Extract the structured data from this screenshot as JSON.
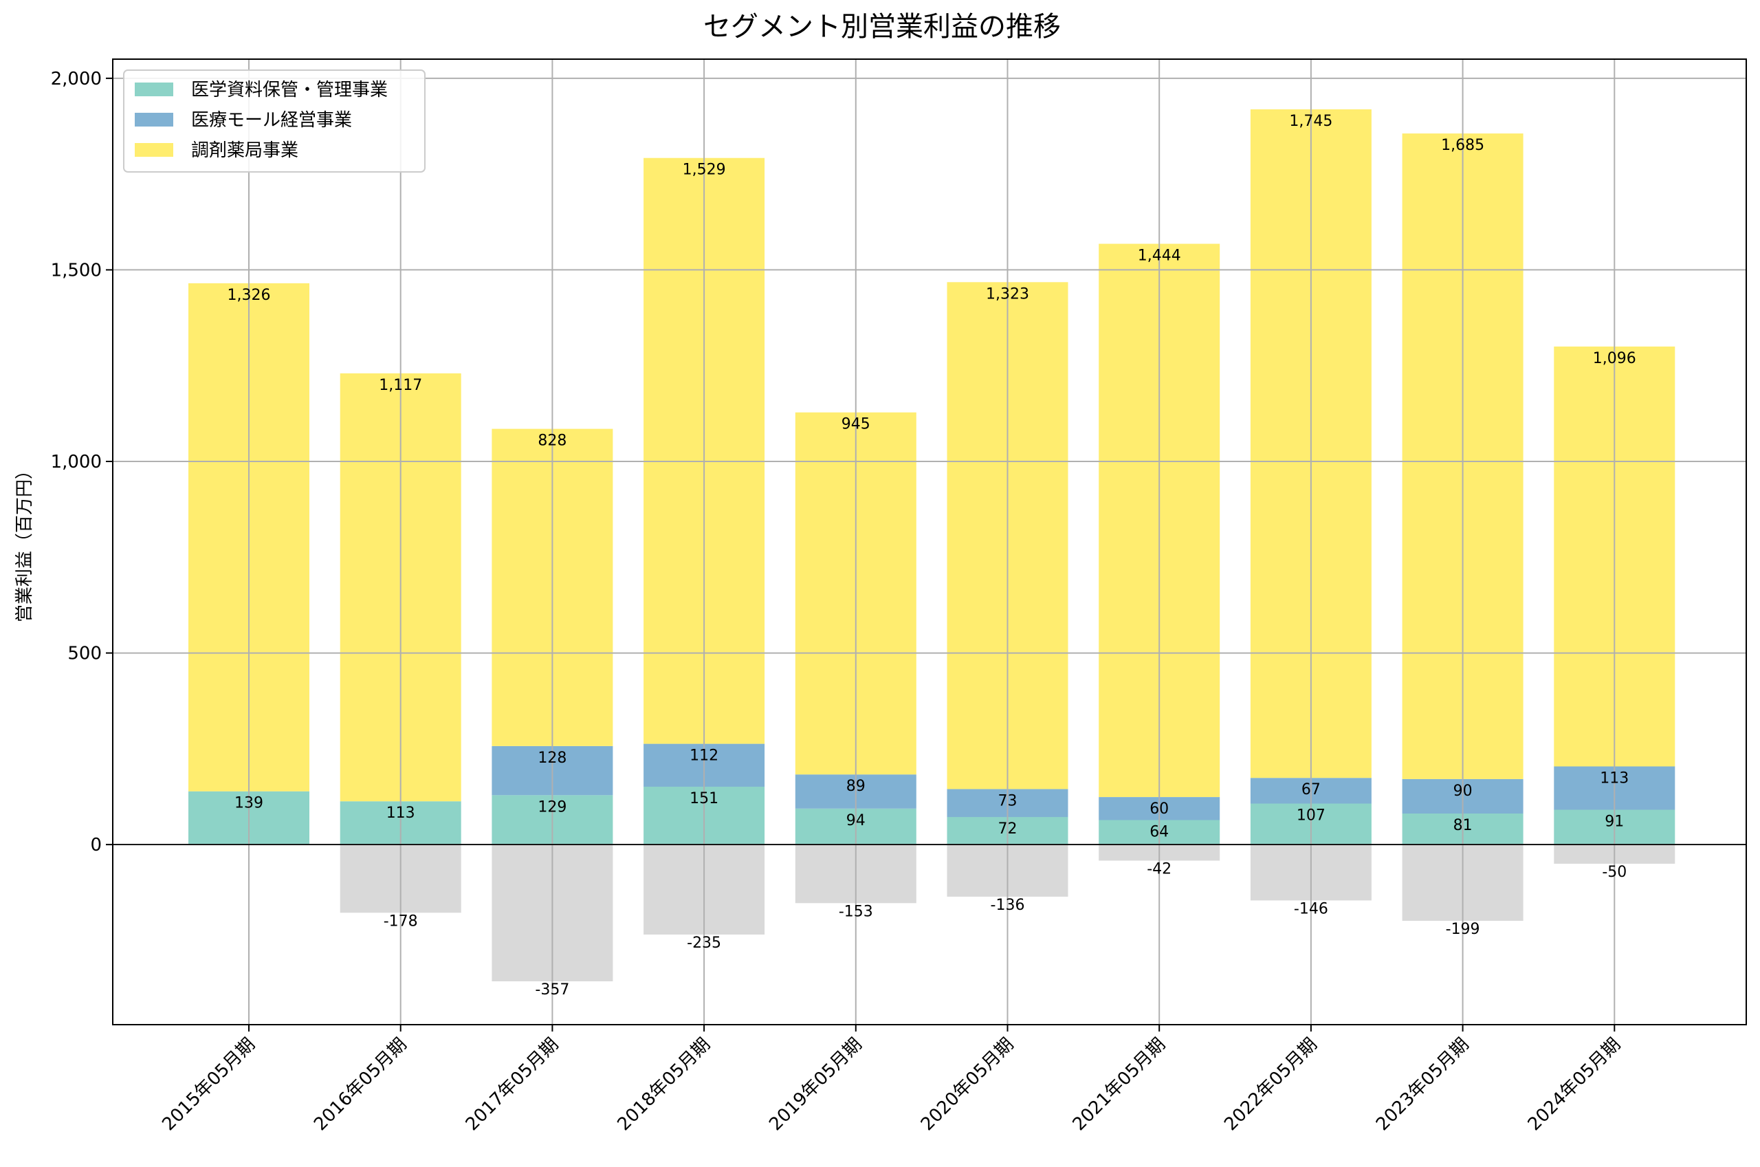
{
  "chart_data": {
    "type": "bar",
    "stacked": true,
    "title": "セグメント別営業利益の推移",
    "xlabel": "",
    "ylabel": "営業利益（百万円）",
    "ylim": [
      -470,
      2050
    ],
    "yticks": [
      0,
      500,
      1000,
      1500,
      2000
    ],
    "ytick_labels": [
      "0",
      "500",
      "1,000",
      "1,500",
      "2,000"
    ],
    "grid": true,
    "legend_position": "top-left",
    "categories": [
      "2015年05月期",
      "2016年05月期",
      "2017年05月期",
      "2018年05月期",
      "2019年05月期",
      "2020年05月期",
      "2021年05月期",
      "2022年05月期",
      "2023年05月期",
      "2024年05月期"
    ],
    "series": [
      {
        "name": "医学資料保管・管理事業",
        "color": "#8dd3c7",
        "values": [
          139,
          113,
          129,
          151,
          94,
          72,
          64,
          107,
          81,
          91
        ],
        "labels": [
          "139",
          "113",
          "129",
          "151",
          "94",
          "72",
          "64",
          "107",
          "81",
          "91"
        ]
      },
      {
        "name": "医療モール経営事業",
        "color": "#80b1d3",
        "values": [
          null,
          null,
          128,
          112,
          89,
          73,
          60,
          67,
          90,
          113
        ],
        "labels": [
          "",
          "",
          "128",
          "112",
          "89",
          "73",
          "60",
          "67",
          "90",
          "113"
        ]
      },
      {
        "name": "調剤薬局事業",
        "color": "#ffed6f",
        "values": [
          1326,
          1117,
          828,
          1529,
          945,
          1323,
          1444,
          1745,
          1685,
          1096
        ],
        "labels": [
          "1,326",
          "1,117",
          "828",
          "1,529",
          "945",
          "1,323",
          "1,444",
          "1,745",
          "1,685",
          "1,096"
        ]
      },
      {
        "color": "#d9d9d9",
        "values": [
          null,
          -178,
          -357,
          -235,
          -153,
          -136,
          -42,
          -146,
          -199,
          -50
        ],
        "labels": [
          "",
          "-178",
          "-357",
          "-235",
          "-153",
          "-136",
          "-42",
          "-146",
          "-199",
          "-50"
        ]
      }
    ]
  }
}
